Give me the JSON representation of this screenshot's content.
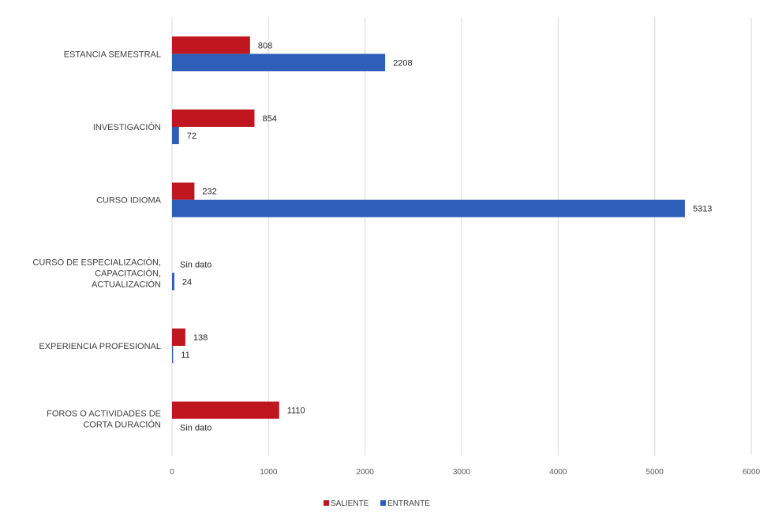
{
  "chart_data": {
    "type": "bar",
    "orientation": "horizontal",
    "categories": [
      "ESTANCIA SEMESTRAL",
      "INVESTIGACIÓN",
      "CURSO IDIOMA",
      "CURSO DE ESPECIALIZACIÓN, CAPACITACIÓN, ACTUALIZACIÓN",
      "EXPERIENCIA PROFESIONAL",
      "FOROS O ACTIVIDADES DE CORTA DURACIÓN"
    ],
    "category_lines": [
      [
        "ESTANCIA SEMESTRAL"
      ],
      [
        "INVESTIGACIÓN"
      ],
      [
        "CURSO IDIOMA"
      ],
      [
        "CURSO DE ESPECIALIZACIÓN,",
        "CAPACITACIÓN,",
        "ACTUALIZACIÓN"
      ],
      [
        "EXPERIENCIA PROFESIONAL"
      ],
      [
        "FOROS O ACTIVIDADES DE",
        "CORTA DURACIÓN"
      ]
    ],
    "series": [
      {
        "name": "SALIENTE",
        "color": "#c0161f",
        "values": [
          808,
          854,
          232,
          null,
          138,
          1110
        ],
        "labels": [
          "808",
          "854",
          "232",
          "Sin dato",
          "138",
          "1110"
        ]
      },
      {
        "name": "ENTRANTE",
        "color": "#2e5eb8",
        "values": [
          2208,
          72,
          5313,
          24,
          11,
          null
        ],
        "labels": [
          "2208",
          "72",
          "5313",
          "24",
          "11",
          "Sin dato"
        ]
      }
    ],
    "xlim": [
      0,
      6000
    ],
    "xticks": [
      0,
      1000,
      2000,
      3000,
      4000,
      5000,
      6000
    ],
    "xtick_labels": [
      "0",
      "1000",
      "2000",
      "3000",
      "4000",
      "5000",
      "6000"
    ],
    "grid": "vertical",
    "legend_position": "bottom"
  }
}
